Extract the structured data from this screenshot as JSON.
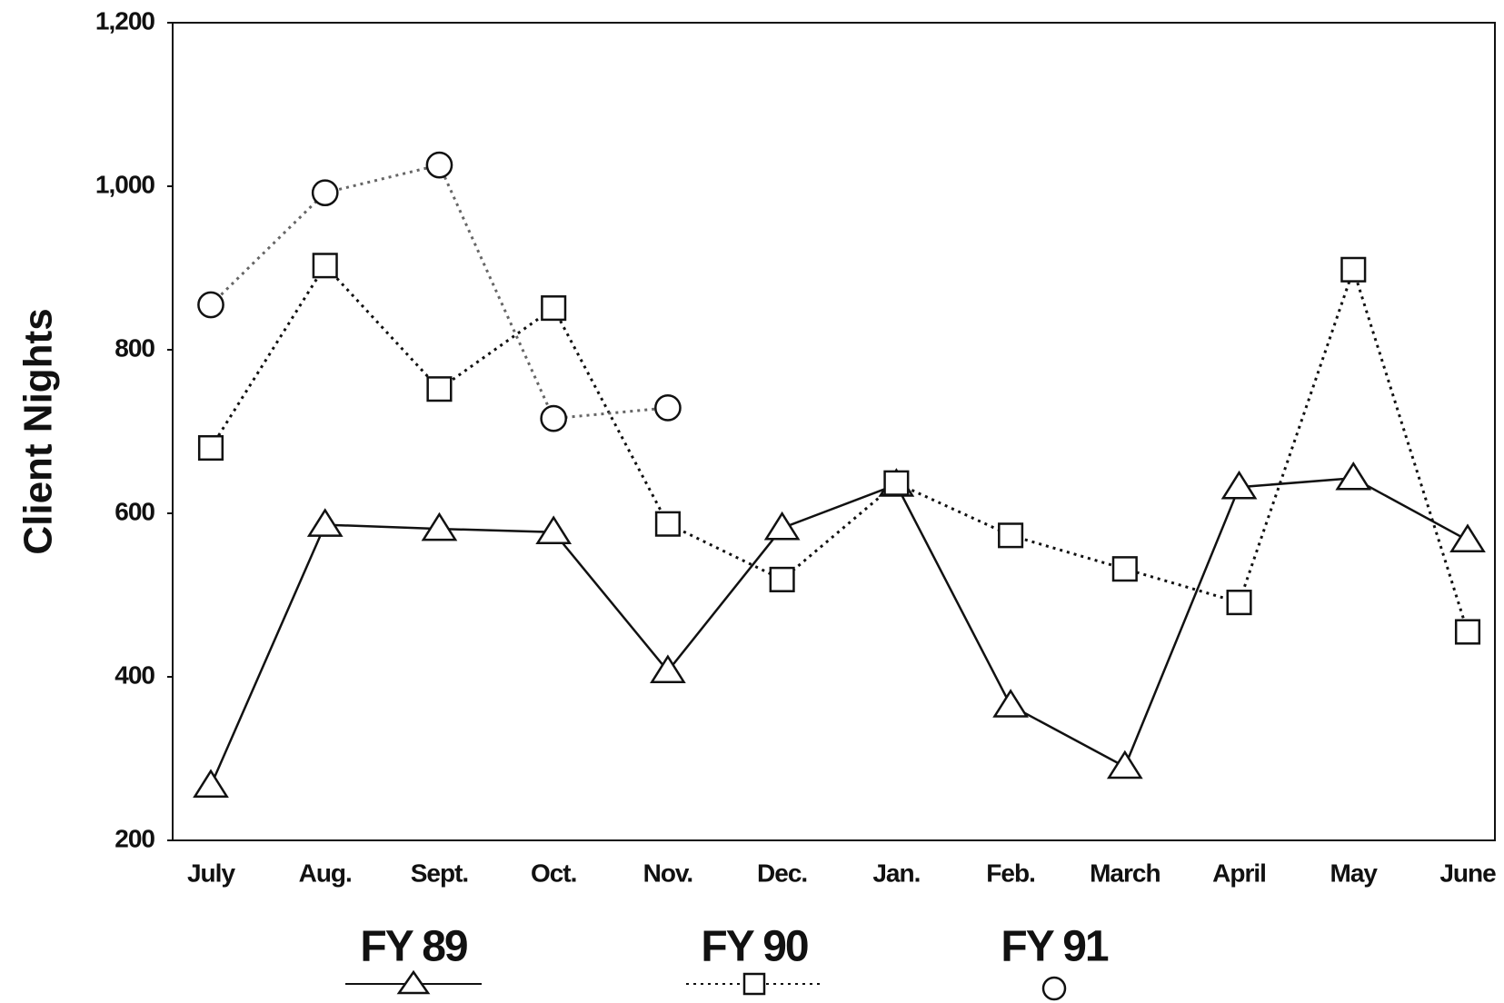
{
  "chart_data": {
    "type": "line",
    "y_label": "Client Nights",
    "categories": [
      "July",
      "Aug.",
      "Sept.",
      "Oct.",
      "Nov.",
      "Dec.",
      "Jan.",
      "Feb.",
      "March",
      "April",
      "May",
      "June"
    ],
    "ylim": [
      200,
      1200
    ],
    "yticks": [
      200,
      400,
      600,
      800,
      {
        "value": 1000,
        "label": "1,000"
      },
      {
        "value": 1200,
        "label": "1,200"
      }
    ],
    "series": [
      {
        "name": "FY 89",
        "color": "#111111",
        "line_style": "solid",
        "marker": "triangle",
        "values": [
          267,
          586,
          581,
          577,
          407,
          582,
          635,
          365,
          290,
          632,
          643,
          567
        ]
      },
      {
        "name": "FY 90",
        "color": "#111111",
        "line_style": "dotted",
        "marker": "square",
        "values": [
          680,
          903,
          752,
          851,
          587,
          519,
          637,
          573,
          532,
          491,
          898,
          455
        ]
      },
      {
        "name": "FY 91",
        "color": "#666666",
        "line_style": "dotted",
        "marker": "circle",
        "values": [
          855,
          992,
          1026,
          716,
          729,
          null,
          null,
          null,
          null,
          null,
          null,
          null
        ]
      }
    ]
  }
}
